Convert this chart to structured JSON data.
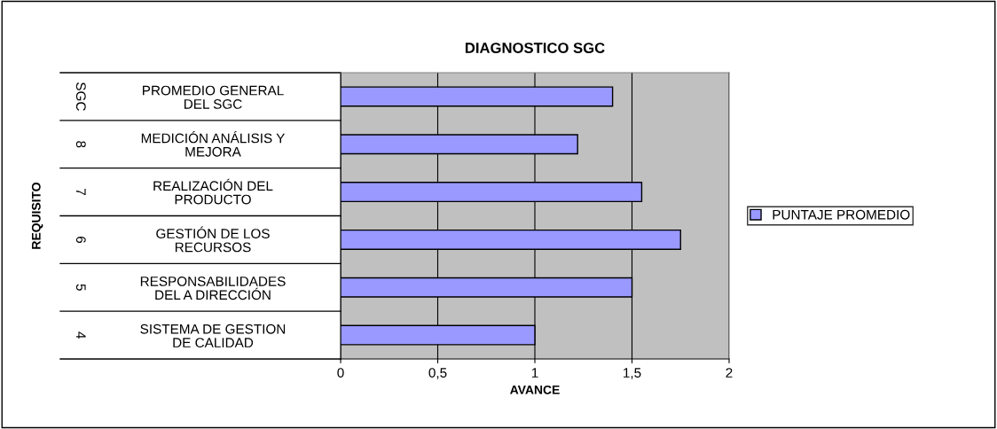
{
  "chart_data": {
    "type": "bar",
    "orientation": "horizontal",
    "title": "DIAGNOSTICO SGC",
    "xlabel": "AVANCE",
    "categories": [
      "PROMEDIO GENERAL\nDEL SGC",
      "MEDICIÓN ANÁLISIS Y\nMEJORA",
      "REALIZACIÓN DEL\nPRODUCTO",
      "GESTIÓN DE LOS\nRECURSOS",
      "RESPONSABILIDADES\nDEL A DIRECCIÓN",
      "SISTEMA DE GESTION\nDE CALIDAD"
    ],
    "series": [
      {
        "name": "PUNTAJE PROMEDIO",
        "color": "#9999ff",
        "values": [
          1.4,
          1.22,
          1.55,
          1.75,
          1.5,
          1.0
        ]
      }
    ],
    "annotations": [
      "REQUISITO",
      "SGC",
      "8",
      "7",
      "6",
      "5",
      "4"
    ],
    "xlim": [
      0,
      2
    ],
    "xticks": [
      {
        "value": 0,
        "label": "0"
      },
      {
        "value": 0.5,
        "label": "0,5"
      },
      {
        "value": 1,
        "label": "1"
      },
      {
        "value": 1.5,
        "label": "1,5"
      },
      {
        "value": 2,
        "label": "2"
      }
    ],
    "grid": "x",
    "legend": "right"
  }
}
